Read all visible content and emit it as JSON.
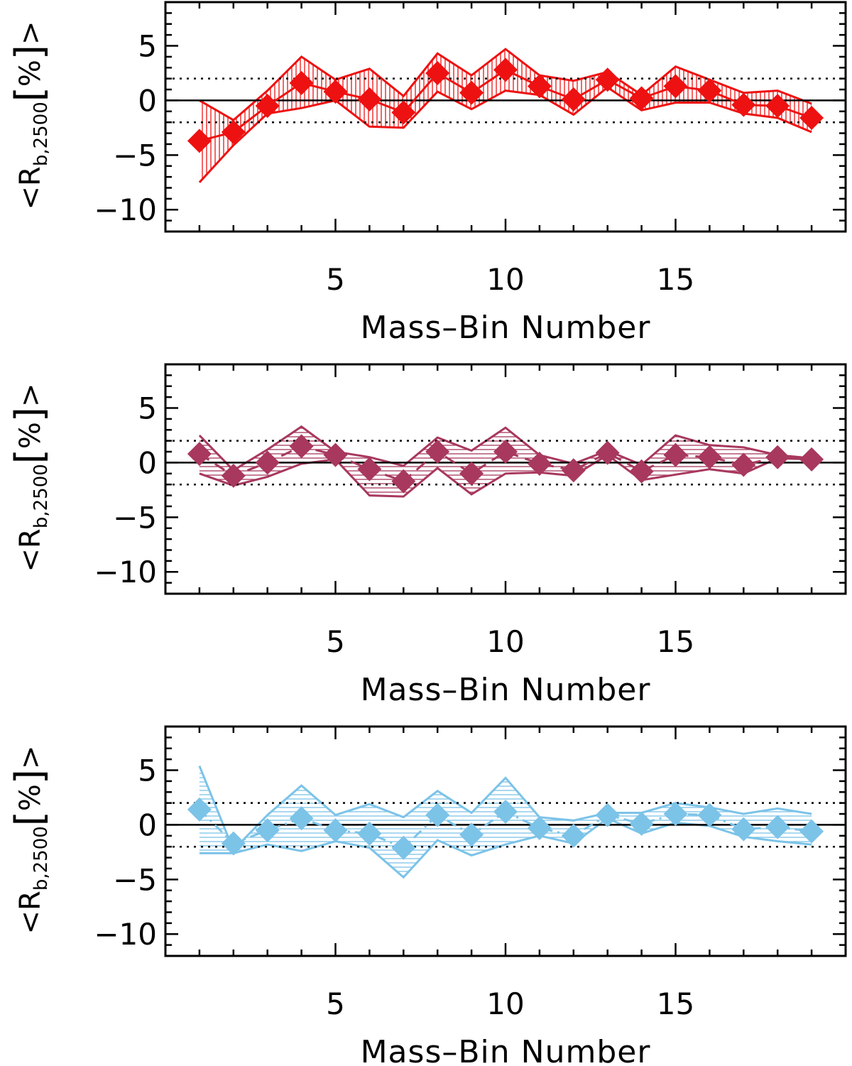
{
  "chart_data": [
    {
      "type": "line",
      "color": "#ee1111",
      "line_style": "solid",
      "hatch": "vertical",
      "xlabel": "Mass–Bin Number",
      "ylabel": {
        "prefix": "<R",
        "sub": "b,2500",
        "open": "[",
        "unit": "%",
        "close": "]",
        "suffix": ">"
      },
      "xlim": [
        0,
        20
      ],
      "ylim": [
        -12,
        9
      ],
      "xticks": [
        5,
        10,
        15
      ],
      "yticks": [
        5,
        0,
        -5,
        -10
      ],
      "ytick_labels": [
        "5",
        "0",
        "−5",
        "−10"
      ],
      "reference_lines": {
        "solid": 0,
        "dotted": [
          2,
          -2
        ]
      },
      "x": [
        1,
        2,
        3,
        4,
        5,
        6,
        7,
        8,
        9,
        10,
        11,
        12,
        13,
        14,
        15,
        16,
        17,
        18,
        19
      ],
      "values": [
        -3.7,
        -2.9,
        -0.5,
        1.6,
        0.8,
        0.1,
        -1.1,
        2.5,
        0.7,
        2.8,
        1.3,
        0.1,
        1.9,
        0.2,
        1.3,
        0.9,
        -0.4,
        -0.5,
        -1.6
      ],
      "upper": [
        0.0,
        -1.8,
        0.9,
        4.0,
        1.9,
        2.9,
        0.4,
        4.3,
        2.3,
        4.7,
        2.3,
        1.8,
        2.6,
        0.5,
        3.1,
        1.9,
        0.7,
        0.9,
        -0.3
      ],
      "lower": [
        -7.5,
        -4.1,
        -1.2,
        -0.7,
        0.0,
        -2.4,
        -2.5,
        0.8,
        -0.8,
        0.9,
        0.5,
        -1.3,
        1.2,
        -0.9,
        -0.2,
        -0.2,
        -1.2,
        -1.6,
        -2.9
      ]
    },
    {
      "type": "line",
      "color": "#a8385e",
      "line_style": "dashed",
      "hatch": "horizontal",
      "xlabel": "Mass–Bin Number",
      "ylabel": {
        "prefix": "<R",
        "sub": "b,2500",
        "open": "[",
        "unit": "%",
        "close": "]",
        "suffix": ">"
      },
      "xlim": [
        0,
        20
      ],
      "ylim": [
        -12,
        9
      ],
      "xticks": [
        5,
        10,
        15
      ],
      "yticks": [
        5,
        0,
        -5,
        -10
      ],
      "ytick_labels": [
        "5",
        "0",
        "−5",
        "−10"
      ],
      "reference_lines": {
        "solid": 0,
        "dotted": [
          2,
          -2
        ]
      },
      "x": [
        1,
        2,
        3,
        4,
        5,
        6,
        7,
        8,
        9,
        10,
        11,
        12,
        13,
        14,
        15,
        16,
        17,
        18,
        19
      ],
      "values": [
        0.8,
        -1.2,
        0.0,
        1.5,
        0.7,
        -0.6,
        -1.7,
        1.0,
        -1.0,
        1.0,
        -0.1,
        -0.7,
        0.9,
        -0.8,
        0.7,
        0.5,
        -0.2,
        0.5,
        0.3
      ],
      "upper": [
        2.5,
        -0.7,
        1.2,
        3.3,
        1.0,
        0.5,
        -0.3,
        2.3,
        1.1,
        3.2,
        0.7,
        -0.1,
        1.1,
        -0.2,
        2.5,
        1.6,
        1.4,
        0.7,
        0.4
      ],
      "lower": [
        -1.0,
        -2.1,
        -1.3,
        -0.1,
        0.3,
        -3.0,
        -3.1,
        -0.5,
        -2.9,
        -1.0,
        -0.9,
        -1.2,
        0.7,
        -1.6,
        -1.1,
        -0.6,
        -1.0,
        0.4,
        0.3
      ]
    },
    {
      "type": "line",
      "color": "#7cc3e8",
      "line_style": "dash-dot",
      "hatch": "horizontal",
      "xlabel": "Mass–Bin Number",
      "ylabel": {
        "prefix": "<R",
        "sub": "b,2500",
        "open": "[",
        "unit": "%",
        "close": "]",
        "suffix": ">"
      },
      "xlim": [
        0,
        20
      ],
      "ylim": [
        -12,
        9
      ],
      "xticks": [
        5,
        10,
        15
      ],
      "yticks": [
        5,
        0,
        -5,
        -10
      ],
      "ytick_labels": [
        "5",
        "0",
        "−5",
        "−10"
      ],
      "reference_lines": {
        "solid": 0,
        "dotted": [
          2,
          -2
        ]
      },
      "x": [
        1,
        2,
        3,
        4,
        5,
        6,
        7,
        8,
        9,
        10,
        11,
        12,
        13,
        14,
        15,
        16,
        17,
        18,
        19
      ],
      "values": [
        1.4,
        -1.7,
        -0.5,
        0.6,
        -0.5,
        -0.8,
        -2.1,
        0.9,
        -0.9,
        1.2,
        -0.3,
        -1.0,
        0.9,
        0.1,
        1.0,
        0.9,
        -0.4,
        -0.2,
        -0.6
      ],
      "upper": [
        5.4,
        -2.3,
        0.9,
        3.6,
        0.9,
        1.9,
        0.7,
        3.1,
        1.1,
        4.3,
        0.7,
        0.4,
        1.1,
        1.1,
        2.0,
        1.6,
        1.0,
        1.5,
        1.0
      ],
      "lower": [
        -2.6,
        -2.6,
        -1.8,
        -2.4,
        -1.5,
        -2.1,
        -4.8,
        -1.4,
        -2.8,
        -1.8,
        -1.0,
        -1.7,
        0.6,
        -0.8,
        0.2,
        -0.1,
        -1.1,
        -1.5,
        -1.8
      ]
    }
  ]
}
